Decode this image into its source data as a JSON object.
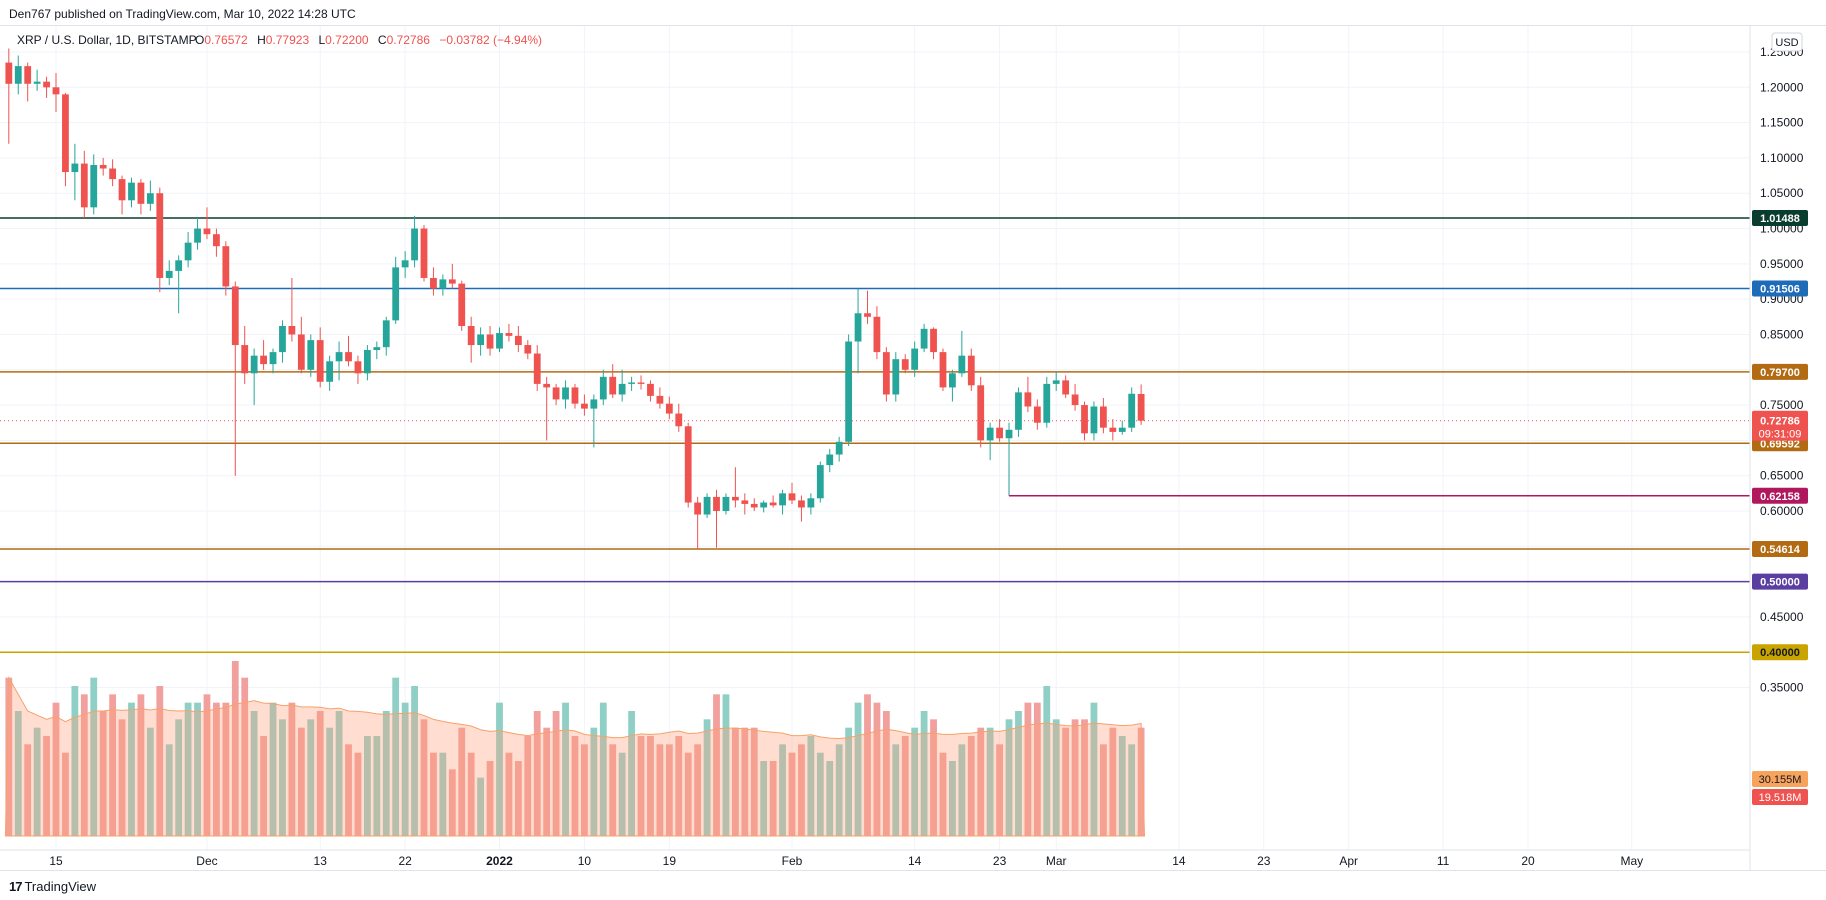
{
  "header": {
    "published": "Den767 published on TradingView.com, Mar 10, 2022 14:28 UTC"
  },
  "footer": {
    "logo_mark": "17",
    "logo_text": "TradingView"
  },
  "colors": {
    "up": "#26a69a",
    "down": "#ef5350",
    "vol_up": "#8fcfc5",
    "vol_down": "#f2a09d",
    "vol_ma": "#ffa07a"
  },
  "chart_data": {
    "type": "candlestick",
    "symbol": "XRP / U.S. Dollar, 1D, BITSTAMP",
    "ohlc_labels": {
      "o": "O",
      "h": "H",
      "l": "L",
      "c": "C"
    },
    "ohlc_values": {
      "o": "0.76572",
      "h": "0.77923",
      "l": "0.72200",
      "c": "0.72786",
      "change": "−0.03782 (−4.94%)"
    },
    "currency": "USD",
    "y_ticks": [
      "1.25000",
      "1.20000",
      "1.15000",
      "1.10000",
      "1.05000",
      "1.00000",
      "0.95000",
      "0.90000",
      "0.85000",
      "0.80000",
      "0.75000",
      "0.70000",
      "0.65000",
      "0.60000",
      "0.55000",
      "0.50000",
      "0.45000",
      "0.40000",
      "0.35000"
    ],
    "x_ticks": [
      {
        "label": "15",
        "date": "2021-11-15"
      },
      {
        "label": "Dec",
        "date": "2021-12-01"
      },
      {
        "label": "13",
        "date": "2021-12-13"
      },
      {
        "label": "22",
        "date": "2021-12-22"
      },
      {
        "label": "2022",
        "date": "2022-01-01",
        "bold": true
      },
      {
        "label": "10",
        "date": "2022-01-10"
      },
      {
        "label": "19",
        "date": "2022-01-19"
      },
      {
        "label": "Feb",
        "date": "2022-02-01"
      },
      {
        "label": "14",
        "date": "2022-02-14"
      },
      {
        "label": "23",
        "date": "2022-02-23"
      },
      {
        "label": "Mar",
        "date": "2022-03-01"
      },
      {
        "label": "14",
        "date": "2022-03-14"
      },
      {
        "label": "23",
        "date": "2022-03-23"
      },
      {
        "label": "Apr",
        "date": "2022-04-01"
      },
      {
        "label": "11",
        "date": "2022-04-11"
      },
      {
        "label": "20",
        "date": "2022-04-20"
      },
      {
        "label": "May",
        "date": "2022-05-01"
      }
    ],
    "candles": [
      {
        "date": "2021-11-10",
        "o": 1.235,
        "h": 1.255,
        "l": 1.12,
        "c": 1.205
      },
      {
        "date": "2021-11-11",
        "o": 1.205,
        "h": 1.245,
        "l": 1.19,
        "c": 1.23
      },
      {
        "date": "2021-11-12",
        "o": 1.23,
        "h": 1.235,
        "l": 1.18,
        "c": 1.205
      },
      {
        "date": "2021-11-13",
        "o": 1.205,
        "h": 1.225,
        "l": 1.195,
        "c": 1.208
      },
      {
        "date": "2021-11-14",
        "o": 1.208,
        "h": 1.215,
        "l": 1.185,
        "c": 1.2
      },
      {
        "date": "2021-11-15",
        "o": 1.2,
        "h": 1.22,
        "l": 1.165,
        "c": 1.19
      },
      {
        "date": "2021-11-16",
        "o": 1.19,
        "h": 1.192,
        "l": 1.06,
        "c": 1.08
      },
      {
        "date": "2021-11-17",
        "o": 1.08,
        "h": 1.12,
        "l": 1.04,
        "c": 1.092
      },
      {
        "date": "2021-11-18",
        "o": 1.092,
        "h": 1.11,
        "l": 1.015,
        "c": 1.03
      },
      {
        "date": "2021-11-19",
        "o": 1.03,
        "h": 1.105,
        "l": 1.02,
        "c": 1.09
      },
      {
        "date": "2021-11-20",
        "o": 1.09,
        "h": 1.1,
        "l": 1.075,
        "c": 1.085
      },
      {
        "date": "2021-11-21",
        "o": 1.085,
        "h": 1.098,
        "l": 1.06,
        "c": 1.07
      },
      {
        "date": "2021-11-22",
        "o": 1.07,
        "h": 1.075,
        "l": 1.02,
        "c": 1.04
      },
      {
        "date": "2021-11-23",
        "o": 1.04,
        "h": 1.072,
        "l": 1.03,
        "c": 1.065
      },
      {
        "date": "2021-11-24",
        "o": 1.065,
        "h": 1.07,
        "l": 1.02,
        "c": 1.035
      },
      {
        "date": "2021-11-25",
        "o": 1.035,
        "h": 1.068,
        "l": 1.025,
        "c": 1.05
      },
      {
        "date": "2021-11-26",
        "o": 1.05,
        "h": 1.058,
        "l": 0.91,
        "c": 0.93
      },
      {
        "date": "2021-11-27",
        "o": 0.93,
        "h": 0.955,
        "l": 0.92,
        "c": 0.94
      },
      {
        "date": "2021-11-28",
        "o": 0.94,
        "h": 0.962,
        "l": 0.88,
        "c": 0.955
      },
      {
        "date": "2021-11-29",
        "o": 0.955,
        "h": 0.995,
        "l": 0.945,
        "c": 0.98
      },
      {
        "date": "2021-11-30",
        "o": 0.98,
        "h": 1.015,
        "l": 0.97,
        "c": 1.0
      },
      {
        "date": "2021-12-01",
        "o": 1.0,
        "h": 1.03,
        "l": 0.985,
        "c": 0.992
      },
      {
        "date": "2021-12-02",
        "o": 0.992,
        "h": 1.0,
        "l": 0.96,
        "c": 0.975
      },
      {
        "date": "2021-12-03",
        "o": 0.975,
        "h": 0.982,
        "l": 0.905,
        "c": 0.918
      },
      {
        "date": "2021-12-04",
        "o": 0.918,
        "h": 0.925,
        "l": 0.65,
        "c": 0.835
      },
      {
        "date": "2021-12-05",
        "o": 0.835,
        "h": 0.862,
        "l": 0.78,
        "c": 0.795
      },
      {
        "date": "2021-12-06",
        "o": 0.795,
        "h": 0.83,
        "l": 0.75,
        "c": 0.82
      },
      {
        "date": "2021-12-07",
        "o": 0.82,
        "h": 0.842,
        "l": 0.8,
        "c": 0.808
      },
      {
        "date": "2021-12-08",
        "o": 0.808,
        "h": 0.83,
        "l": 0.795,
        "c": 0.825
      },
      {
        "date": "2021-12-09",
        "o": 0.825,
        "h": 0.87,
        "l": 0.81,
        "c": 0.862
      },
      {
        "date": "2021-12-10",
        "o": 0.862,
        "h": 0.93,
        "l": 0.84,
        "c": 0.85
      },
      {
        "date": "2021-12-11",
        "o": 0.85,
        "h": 0.875,
        "l": 0.795,
        "c": 0.8
      },
      {
        "date": "2021-12-12",
        "o": 0.8,
        "h": 0.85,
        "l": 0.79,
        "c": 0.842
      },
      {
        "date": "2021-12-13",
        "o": 0.842,
        "h": 0.86,
        "l": 0.775,
        "c": 0.783
      },
      {
        "date": "2021-12-14",
        "o": 0.783,
        "h": 0.82,
        "l": 0.77,
        "c": 0.812
      },
      {
        "date": "2021-12-15",
        "o": 0.812,
        "h": 0.84,
        "l": 0.785,
        "c": 0.825
      },
      {
        "date": "2021-12-16",
        "o": 0.825,
        "h": 0.848,
        "l": 0.805,
        "c": 0.812
      },
      {
        "date": "2021-12-17",
        "o": 0.812,
        "h": 0.82,
        "l": 0.78,
        "c": 0.795
      },
      {
        "date": "2021-12-18",
        "o": 0.795,
        "h": 0.835,
        "l": 0.785,
        "c": 0.828
      },
      {
        "date": "2021-12-19",
        "o": 0.828,
        "h": 0.84,
        "l": 0.815,
        "c": 0.832
      },
      {
        "date": "2021-12-20",
        "o": 0.832,
        "h": 0.875,
        "l": 0.82,
        "c": 0.87
      },
      {
        "date": "2021-12-21",
        "o": 0.87,
        "h": 0.96,
        "l": 0.865,
        "c": 0.945
      },
      {
        "date": "2021-12-22",
        "o": 0.945,
        "h": 0.968,
        "l": 0.93,
        "c": 0.955
      },
      {
        "date": "2021-12-23",
        "o": 0.955,
        "h": 1.018,
        "l": 0.945,
        "c": 1.0
      },
      {
        "date": "2021-12-24",
        "o": 1.0,
        "h": 1.005,
        "l": 0.925,
        "c": 0.93
      },
      {
        "date": "2021-12-25",
        "o": 0.93,
        "h": 0.945,
        "l": 0.905,
        "c": 0.915
      },
      {
        "date": "2021-12-26",
        "o": 0.915,
        "h": 0.935,
        "l": 0.905,
        "c": 0.928
      },
      {
        "date": "2021-12-27",
        "o": 0.928,
        "h": 0.95,
        "l": 0.915,
        "c": 0.922
      },
      {
        "date": "2021-12-28",
        "o": 0.922,
        "h": 0.926,
        "l": 0.855,
        "c": 0.862
      },
      {
        "date": "2021-12-29",
        "o": 0.862,
        "h": 0.875,
        "l": 0.81,
        "c": 0.835
      },
      {
        "date": "2021-12-30",
        "o": 0.835,
        "h": 0.86,
        "l": 0.82,
        "c": 0.85
      },
      {
        "date": "2021-12-31",
        "o": 0.85,
        "h": 0.862,
        "l": 0.82,
        "c": 0.83
      },
      {
        "date": "2022-01-01",
        "o": 0.83,
        "h": 0.86,
        "l": 0.825,
        "c": 0.852
      },
      {
        "date": "2022-01-02",
        "o": 0.852,
        "h": 0.865,
        "l": 0.84,
        "c": 0.848
      },
      {
        "date": "2022-01-03",
        "o": 0.848,
        "h": 0.862,
        "l": 0.825,
        "c": 0.835
      },
      {
        "date": "2022-01-04",
        "o": 0.835,
        "h": 0.842,
        "l": 0.815,
        "c": 0.823
      },
      {
        "date": "2022-01-05",
        "o": 0.823,
        "h": 0.835,
        "l": 0.77,
        "c": 0.78
      },
      {
        "date": "2022-01-06",
        "o": 0.78,
        "h": 0.79,
        "l": 0.7,
        "c": 0.775
      },
      {
        "date": "2022-01-07",
        "o": 0.775,
        "h": 0.78,
        "l": 0.75,
        "c": 0.758
      },
      {
        "date": "2022-01-08",
        "o": 0.758,
        "h": 0.785,
        "l": 0.745,
        "c": 0.775
      },
      {
        "date": "2022-01-09",
        "o": 0.775,
        "h": 0.78,
        "l": 0.745,
        "c": 0.752
      },
      {
        "date": "2022-01-10",
        "o": 0.752,
        "h": 0.765,
        "l": 0.735,
        "c": 0.745
      },
      {
        "date": "2022-01-11",
        "o": 0.745,
        "h": 0.765,
        "l": 0.69,
        "c": 0.758
      },
      {
        "date": "2022-01-12",
        "o": 0.758,
        "h": 0.8,
        "l": 0.75,
        "c": 0.79
      },
      {
        "date": "2022-01-13",
        "o": 0.79,
        "h": 0.808,
        "l": 0.76,
        "c": 0.765
      },
      {
        "date": "2022-01-14",
        "o": 0.765,
        "h": 0.8,
        "l": 0.755,
        "c": 0.78
      },
      {
        "date": "2022-01-15",
        "o": 0.78,
        "h": 0.79,
        "l": 0.77,
        "c": 0.782
      },
      {
        "date": "2022-01-16",
        "o": 0.782,
        "h": 0.792,
        "l": 0.772,
        "c": 0.78
      },
      {
        "date": "2022-01-17",
        "o": 0.78,
        "h": 0.785,
        "l": 0.755,
        "c": 0.763
      },
      {
        "date": "2022-01-18",
        "o": 0.763,
        "h": 0.775,
        "l": 0.745,
        "c": 0.752
      },
      {
        "date": "2022-01-19",
        "o": 0.752,
        "h": 0.762,
        "l": 0.73,
        "c": 0.738
      },
      {
        "date": "2022-01-20",
        "o": 0.738,
        "h": 0.752,
        "l": 0.712,
        "c": 0.72
      },
      {
        "date": "2022-01-21",
        "o": 0.72,
        "h": 0.725,
        "l": 0.605,
        "c": 0.612
      },
      {
        "date": "2022-01-22",
        "o": 0.612,
        "h": 0.62,
        "l": 0.546,
        "c": 0.595
      },
      {
        "date": "2022-01-23",
        "o": 0.595,
        "h": 0.625,
        "l": 0.59,
        "c": 0.62
      },
      {
        "date": "2022-01-24",
        "o": 0.62,
        "h": 0.63,
        "l": 0.548,
        "c": 0.6
      },
      {
        "date": "2022-01-25",
        "o": 0.6,
        "h": 0.625,
        "l": 0.595,
        "c": 0.62
      },
      {
        "date": "2022-01-26",
        "o": 0.62,
        "h": 0.662,
        "l": 0.605,
        "c": 0.615
      },
      {
        "date": "2022-01-27",
        "o": 0.615,
        "h": 0.625,
        "l": 0.595,
        "c": 0.61
      },
      {
        "date": "2022-01-28",
        "o": 0.61,
        "h": 0.618,
        "l": 0.6,
        "c": 0.605
      },
      {
        "date": "2022-01-29",
        "o": 0.605,
        "h": 0.615,
        "l": 0.598,
        "c": 0.612
      },
      {
        "date": "2022-01-30",
        "o": 0.612,
        "h": 0.622,
        "l": 0.605,
        "c": 0.608
      },
      {
        "date": "2022-01-31",
        "o": 0.608,
        "h": 0.63,
        "l": 0.595,
        "c": 0.625
      },
      {
        "date": "2022-02-01",
        "o": 0.625,
        "h": 0.64,
        "l": 0.61,
        "c": 0.615
      },
      {
        "date": "2022-02-02",
        "o": 0.615,
        "h": 0.622,
        "l": 0.585,
        "c": 0.605
      },
      {
        "date": "2022-02-03",
        "o": 0.605,
        "h": 0.625,
        "l": 0.595,
        "c": 0.618
      },
      {
        "date": "2022-02-04",
        "o": 0.618,
        "h": 0.67,
        "l": 0.612,
        "c": 0.665
      },
      {
        "date": "2022-02-05",
        "o": 0.665,
        "h": 0.688,
        "l": 0.655,
        "c": 0.68
      },
      {
        "date": "2022-02-06",
        "o": 0.68,
        "h": 0.705,
        "l": 0.67,
        "c": 0.698
      },
      {
        "date": "2022-02-07",
        "o": 0.698,
        "h": 0.85,
        "l": 0.692,
        "c": 0.84
      },
      {
        "date": "2022-02-08",
        "o": 0.84,
        "h": 0.915,
        "l": 0.795,
        "c": 0.88
      },
      {
        "date": "2022-02-09",
        "o": 0.88,
        "h": 0.912,
        "l": 0.865,
        "c": 0.875
      },
      {
        "date": "2022-02-10",
        "o": 0.875,
        "h": 0.89,
        "l": 0.815,
        "c": 0.825
      },
      {
        "date": "2022-02-11",
        "o": 0.825,
        "h": 0.832,
        "l": 0.755,
        "c": 0.765
      },
      {
        "date": "2022-02-12",
        "o": 0.765,
        "h": 0.825,
        "l": 0.755,
        "c": 0.815
      },
      {
        "date": "2022-02-13",
        "o": 0.815,
        "h": 0.822,
        "l": 0.795,
        "c": 0.8
      },
      {
        "date": "2022-02-14",
        "o": 0.8,
        "h": 0.84,
        "l": 0.79,
        "c": 0.83
      },
      {
        "date": "2022-02-15",
        "o": 0.83,
        "h": 0.865,
        "l": 0.825,
        "c": 0.858
      },
      {
        "date": "2022-02-16",
        "o": 0.858,
        "h": 0.86,
        "l": 0.815,
        "c": 0.825
      },
      {
        "date": "2022-02-17",
        "o": 0.825,
        "h": 0.83,
        "l": 0.77,
        "c": 0.775
      },
      {
        "date": "2022-02-18",
        "o": 0.775,
        "h": 0.8,
        "l": 0.755,
        "c": 0.795
      },
      {
        "date": "2022-02-19",
        "o": 0.795,
        "h": 0.855,
        "l": 0.79,
        "c": 0.82
      },
      {
        "date": "2022-02-20",
        "o": 0.82,
        "h": 0.83,
        "l": 0.77,
        "c": 0.778
      },
      {
        "date": "2022-02-21",
        "o": 0.778,
        "h": 0.79,
        "l": 0.69,
        "c": 0.7
      },
      {
        "date": "2022-02-22",
        "o": 0.7,
        "h": 0.725,
        "l": 0.672,
        "c": 0.718
      },
      {
        "date": "2022-02-23",
        "o": 0.718,
        "h": 0.73,
        "l": 0.698,
        "c": 0.703
      },
      {
        "date": "2022-02-24",
        "o": 0.703,
        "h": 0.725,
        "l": 0.622,
        "c": 0.715
      },
      {
        "date": "2022-02-25",
        "o": 0.715,
        "h": 0.775,
        "l": 0.705,
        "c": 0.768
      },
      {
        "date": "2022-02-26",
        "o": 0.768,
        "h": 0.79,
        "l": 0.74,
        "c": 0.748
      },
      {
        "date": "2022-02-27",
        "o": 0.748,
        "h": 0.758,
        "l": 0.715,
        "c": 0.725
      },
      {
        "date": "2022-02-28",
        "o": 0.725,
        "h": 0.79,
        "l": 0.718,
        "c": 0.78
      },
      {
        "date": "2022-03-01",
        "o": 0.78,
        "h": 0.798,
        "l": 0.77,
        "c": 0.785
      },
      {
        "date": "2022-03-02",
        "o": 0.785,
        "h": 0.792,
        "l": 0.76,
        "c": 0.765
      },
      {
        "date": "2022-03-03",
        "o": 0.765,
        "h": 0.78,
        "l": 0.742,
        "c": 0.75
      },
      {
        "date": "2022-03-04",
        "o": 0.75,
        "h": 0.755,
        "l": 0.7,
        "c": 0.71
      },
      {
        "date": "2022-03-05",
        "o": 0.71,
        "h": 0.755,
        "l": 0.7,
        "c": 0.748
      },
      {
        "date": "2022-03-06",
        "o": 0.748,
        "h": 0.76,
        "l": 0.71,
        "c": 0.718
      },
      {
        "date": "2022-03-07",
        "o": 0.718,
        "h": 0.73,
        "l": 0.7,
        "c": 0.712
      },
      {
        "date": "2022-03-08",
        "o": 0.712,
        "h": 0.728,
        "l": 0.708,
        "c": 0.718
      },
      {
        "date": "2022-03-09",
        "o": 0.718,
        "h": 0.775,
        "l": 0.712,
        "c": 0.766
      },
      {
        "date": "2022-03-10",
        "o": 0.76572,
        "h": 0.77923,
        "l": 0.722,
        "c": 0.72786
      }
    ],
    "volume": [
      1.9,
      1.5,
      1.1,
      1.3,
      1.2,
      1.6,
      1.0,
      1.8,
      1.7,
      1.9,
      1.5,
      1.7,
      1.4,
      1.6,
      1.7,
      1.3,
      1.8,
      1.1,
      1.4,
      1.6,
      1.6,
      1.7,
      1.6,
      1.6,
      2.1,
      1.9,
      1.5,
      1.2,
      1.6,
      1.4,
      1.6,
      1.3,
      1.4,
      1.5,
      1.3,
      1.5,
      1.1,
      1.0,
      1.2,
      1.2,
      1.5,
      1.9,
      1.6,
      1.8,
      1.4,
      1.0,
      1.0,
      0.8,
      1.3,
      1.0,
      0.7,
      0.9,
      1.6,
      1.0,
      0.9,
      1.2,
      1.5,
      1.3,
      1.5,
      1.6,
      1.2,
      1.1,
      1.3,
      1.6,
      1.1,
      1.0,
      1.5,
      1.2,
      1.2,
      1.1,
      1.1,
      1.2,
      1.0,
      1.1,
      1.4,
      1.7,
      1.7,
      1.3,
      1.3,
      1.3,
      0.9,
      0.9,
      1.1,
      1.0,
      1.1,
      1.2,
      1.0,
      0.9,
      1.1,
      1.3,
      1.6,
      1.7,
      1.6,
      1.5,
      1.1,
      1.2,
      1.3,
      1.5,
      1.4,
      1.0,
      0.9,
      1.1,
      1.2,
      1.3,
      1.3,
      1.1,
      1.4,
      1.5,
      1.6,
      1.6,
      1.8,
      1.4,
      1.3,
      1.4,
      1.4,
      1.6,
      1.1,
      1.3,
      1.2,
      1.1,
      1.3,
      1.4,
      1.5,
      1.4
    ],
    "volume_scale_max": 2.1,
    "horizontal_levels": [
      {
        "value": 1.01488,
        "label": "1.01488",
        "color": "#0b3d2e"
      },
      {
        "value": 0.91506,
        "label": "0.91506",
        "color": "#1e6bb8"
      },
      {
        "value": 0.797,
        "label": "0.79700",
        "color": "#b26b12"
      },
      {
        "value": 0.69592,
        "label": "0.69592",
        "color": "#b26b12"
      },
      {
        "value": 0.62158,
        "label": "0.62158",
        "color": "#b0185e",
        "from_date": "2022-02-24"
      },
      {
        "value": 0.54614,
        "label": "0.54614",
        "color": "#b26b12"
      },
      {
        "value": 0.5,
        "label": "0.50000",
        "color": "#5b3fa0"
      },
      {
        "value": 0.4,
        "label": "0.40000",
        "color": "#c9a400"
      }
    ],
    "last_price": {
      "value": 0.72786,
      "label": "0.72786",
      "countdown": "09:31:09"
    },
    "volume_labels": [
      {
        "label": "30.155M",
        "color": "#f7a35c",
        "text_color": "#131722"
      },
      {
        "label": "19.518M",
        "color": "#ef5350",
        "text_color": "#ffffff"
      }
    ]
  }
}
